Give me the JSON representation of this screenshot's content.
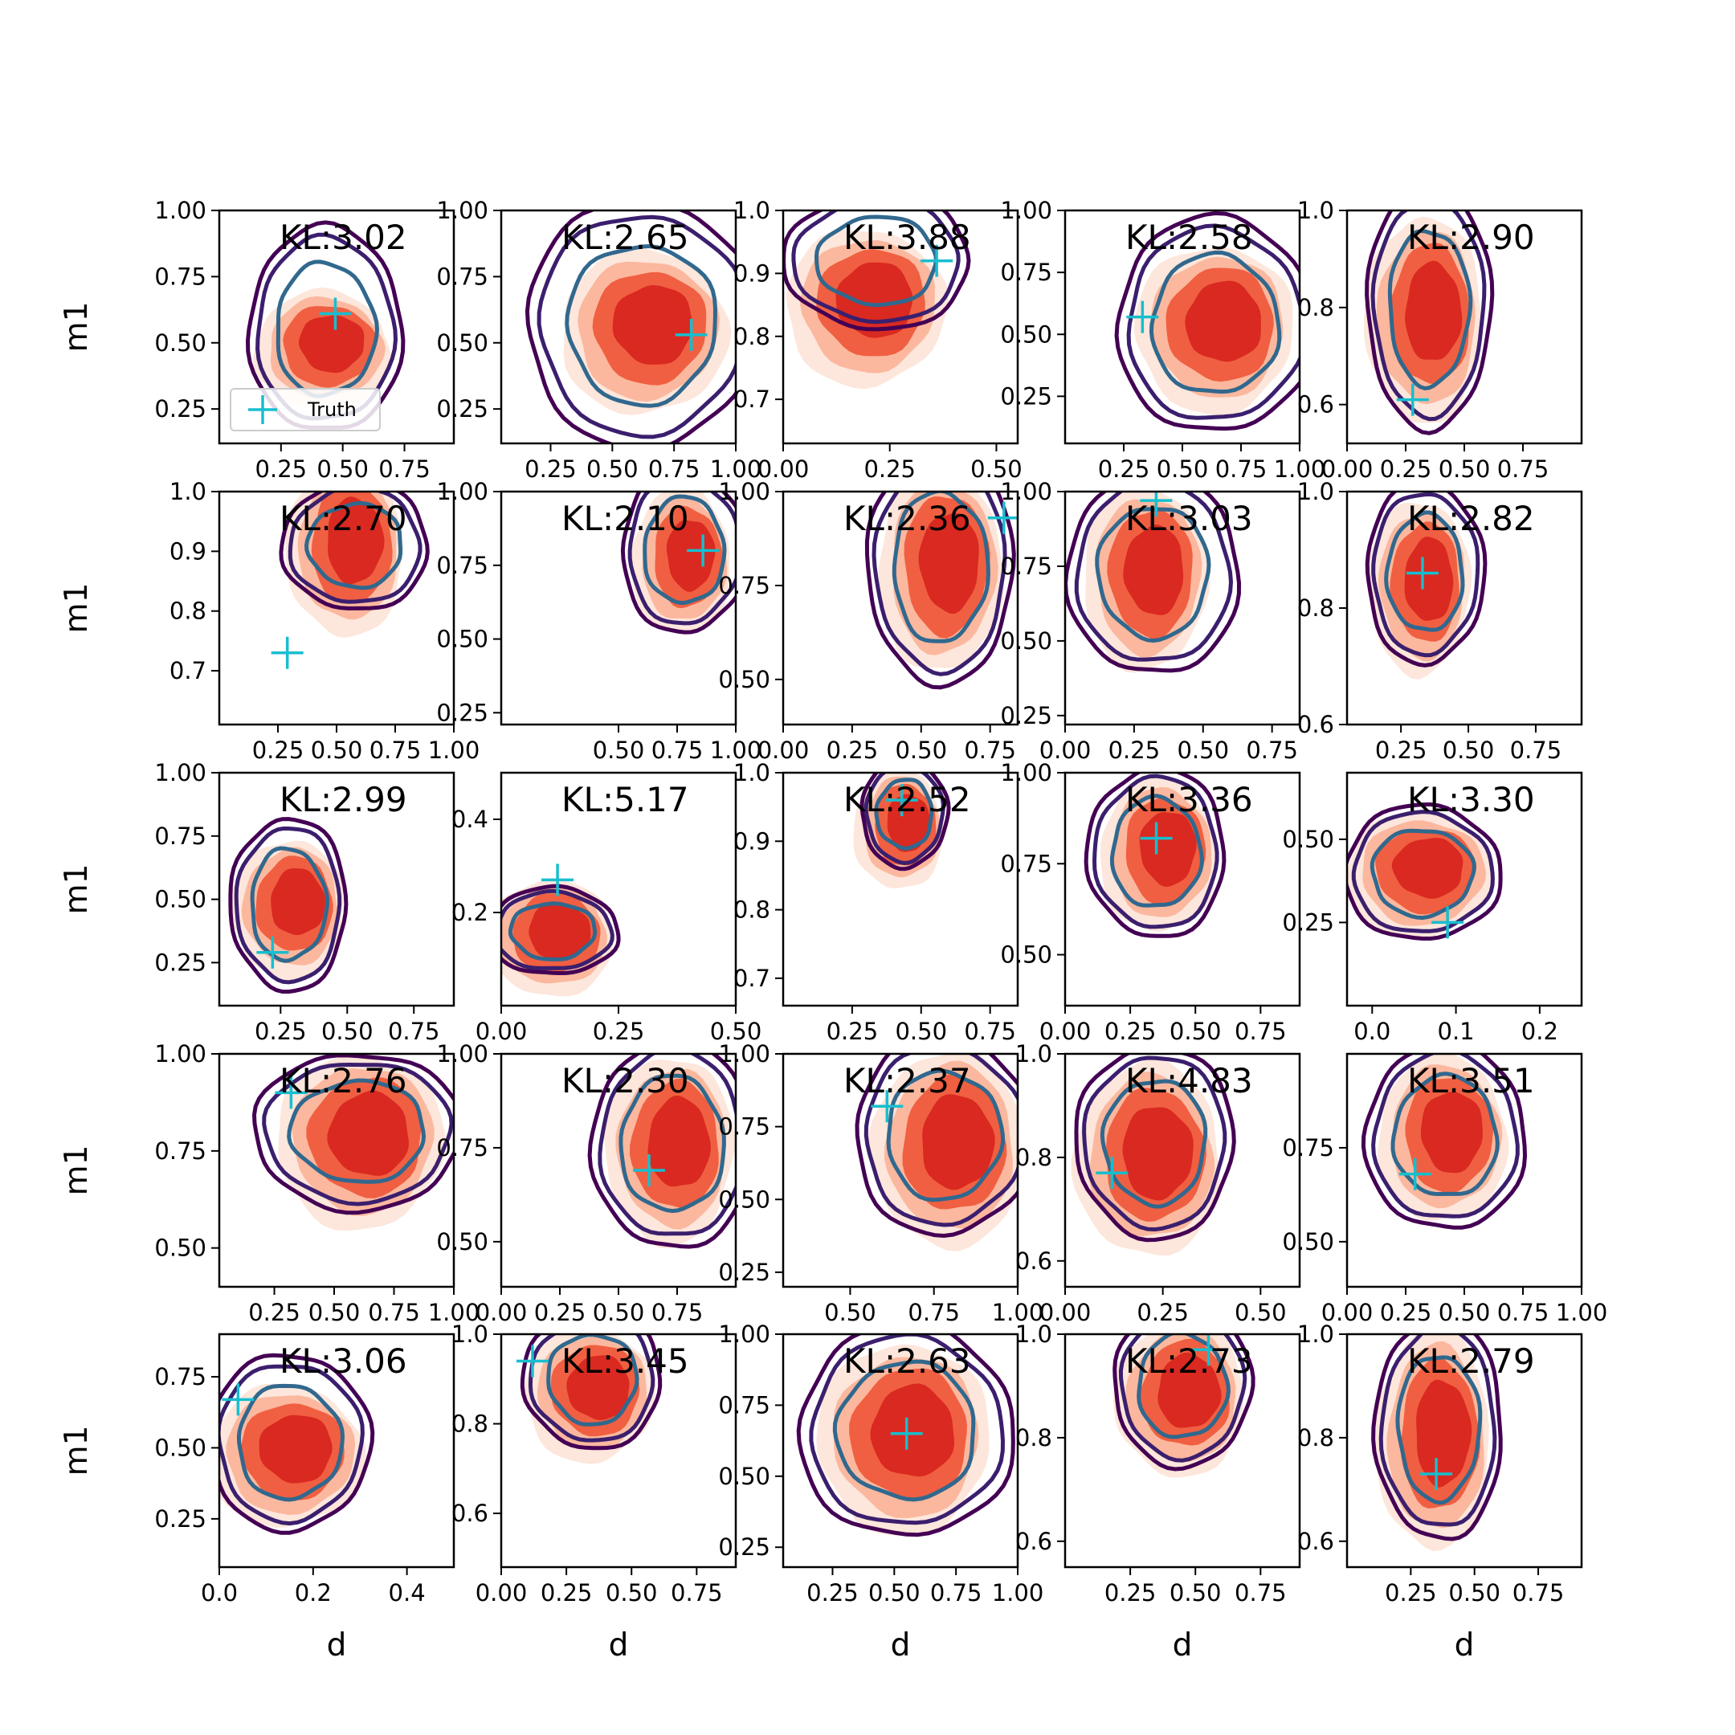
{
  "legend": {
    "label": "Truth",
    "color": "#17becf"
  },
  "colors": {
    "posterior_fill": [
      "#fde0d2",
      "#fbb59b",
      "#ef5a3c",
      "#d7261f"
    ],
    "contour_outer": "#440154",
    "contour_mid": "#3b1f6e",
    "contour_inner": "#31688e",
    "truth": "#17becf"
  },
  "chart_data": [
    {
      "type": "scatter",
      "row": 0,
      "col": 0,
      "annotation": "KL:3.02",
      "xlabel": "",
      "ylabel": "m1",
      "xlim": [
        0.0,
        0.95
      ],
      "ylim": [
        0.12,
        1.0
      ],
      "xticks": [
        "0.25",
        "0.50",
        "0.75"
      ],
      "yticks": [
        "0.25",
        "0.50",
        "0.75",
        "1.00"
      ],
      "truth": [
        0.47,
        0.61
      ],
      "density_center": [
        0.43,
        0.48
      ],
      "density_spread": [
        0.22,
        0.18
      ],
      "blue_contour": {
        "center": [
          0.43,
          0.55
        ],
        "spread": [
          0.2,
          0.25
        ]
      },
      "legend": true
    },
    {
      "type": "scatter",
      "row": 0,
      "col": 1,
      "annotation": "KL:2.65",
      "xlabel": "",
      "ylabel": "",
      "xlim": [
        0.05,
        1.0
      ],
      "ylim": [
        0.12,
        1.0
      ],
      "xticks": [
        "0.25",
        "0.50",
        "0.75",
        "1.00"
      ],
      "yticks": [
        "0.25",
        "0.50",
        "0.75",
        "1.00"
      ],
      "truth": [
        0.82,
        0.53
      ],
      "density_center": [
        0.64,
        0.55
      ],
      "density_spread": [
        0.27,
        0.25
      ],
      "blue_contour": {
        "center": [
          0.62,
          0.57
        ],
        "spread": [
          0.3,
          0.3
        ]
      }
    },
    {
      "type": "scatter",
      "row": 0,
      "col": 2,
      "annotation": "KL:3.88",
      "xlabel": "",
      "ylabel": "",
      "xlim": [
        0.0,
        0.55
      ],
      "ylim": [
        0.63,
        1.0
      ],
      "xticks": [
        "0.00",
        "0.25",
        "0.50"
      ],
      "yticks": [
        "0.7",
        "0.8",
        "0.9",
        "1.0"
      ],
      "truth": [
        0.36,
        0.92
      ],
      "density_center": [
        0.2,
        0.85
      ],
      "density_spread": [
        0.15,
        0.1
      ],
      "blue_contour": {
        "center": [
          0.22,
          0.92
        ],
        "spread": [
          0.14,
          0.07
        ]
      }
    },
    {
      "type": "scatter",
      "row": 0,
      "col": 3,
      "annotation": "KL:2.58",
      "xlabel": "",
      "ylabel": "",
      "xlim": [
        0.0,
        1.0
      ],
      "ylim": [
        0.06,
        1.0
      ],
      "xticks": [
        "0.25",
        "0.50",
        "0.75",
        "1.00"
      ],
      "yticks": [
        "0.25",
        "0.50",
        "0.75",
        "1.00"
      ],
      "truth": [
        0.33,
        0.57
      ],
      "density_center": [
        0.65,
        0.53
      ],
      "density_spread": [
        0.27,
        0.27
      ],
      "blue_contour": {
        "center": [
          0.64,
          0.54
        ],
        "spread": [
          0.27,
          0.28
        ]
      }
    },
    {
      "type": "scatter",
      "row": 0,
      "col": 4,
      "annotation": "KL:2.90",
      "xlabel": "",
      "ylabel": "",
      "xlim": [
        0.0,
        1.0
      ],
      "ylim": [
        0.52,
        1.0
      ],
      "xticks": [
        "0.00",
        "0.25",
        "0.50",
        "0.75"
      ],
      "yticks": [
        "0.6",
        "0.8",
        "1.0"
      ],
      "truth": [
        0.28,
        0.61
      ],
      "density_center": [
        0.34,
        0.78
      ],
      "density_spread": [
        0.2,
        0.17
      ],
      "blue_contour": {
        "center": [
          0.35,
          0.8
        ],
        "spread": [
          0.17,
          0.16
        ]
      }
    },
    {
      "type": "scatter",
      "row": 1,
      "col": 0,
      "annotation": "KL:2.70",
      "xlabel": "",
      "ylabel": "m1",
      "xlim": [
        0.0,
        1.0
      ],
      "ylim": [
        0.61,
        1.0
      ],
      "xticks": [
        "0.25",
        "0.50",
        "0.75",
        "1.00"
      ],
      "yticks": [
        "0.7",
        "0.8",
        "0.9",
        "1.0"
      ],
      "truth": [
        0.29,
        0.73
      ],
      "density_center": [
        0.55,
        0.91
      ],
      "density_spread": [
        0.2,
        0.12
      ],
      "blue_contour": {
        "center": [
          0.58,
          0.91
        ],
        "spread": [
          0.2,
          0.07
        ]
      }
    },
    {
      "type": "scatter",
      "row": 1,
      "col": 1,
      "annotation": "KL:2.10",
      "xlabel": "",
      "ylabel": "",
      "xlim": [
        0.0,
        1.0
      ],
      "ylim": [
        0.21,
        1.0
      ],
      "xticks": [
        "0.50",
        "0.75",
        "1.00"
      ],
      "yticks": [
        "0.25",
        "0.50",
        "0.75",
        "1.00"
      ],
      "truth": [
        0.86,
        0.8
      ],
      "density_center": [
        0.78,
        0.77
      ],
      "density_spread": [
        0.17,
        0.2
      ],
      "blue_contour": {
        "center": [
          0.78,
          0.8
        ],
        "spread": [
          0.17,
          0.18
        ]
      }
    },
    {
      "type": "scatter",
      "row": 1,
      "col": 2,
      "annotation": "KL:2.36",
      "xlabel": "",
      "ylabel": "",
      "xlim": [
        0.0,
        0.85
      ],
      "ylim": [
        0.38,
        1.0
      ],
      "xticks": [
        "0.00",
        "0.25",
        "0.50",
        "0.75"
      ],
      "yticks": [
        "0.50",
        "0.75",
        "1.00"
      ],
      "truth": [
        0.8,
        0.93
      ],
      "density_center": [
        0.58,
        0.8
      ],
      "density_spread": [
        0.18,
        0.22
      ],
      "blue_contour": {
        "center": [
          0.57,
          0.8
        ],
        "spread": [
          0.17,
          0.2
        ]
      }
    },
    {
      "type": "scatter",
      "row": 1,
      "col": 3,
      "annotation": "KL:3.03",
      "xlabel": "",
      "ylabel": "",
      "xlim": [
        0.0,
        0.85
      ],
      "ylim": [
        0.22,
        1.0
      ],
      "xticks": [
        "0.00",
        "0.25",
        "0.50",
        "0.75"
      ],
      "yticks": [
        "0.25",
        "0.50",
        "0.75",
        "1.00"
      ],
      "truth": [
        0.33,
        0.97
      ],
      "density_center": [
        0.3,
        0.72
      ],
      "density_spread": [
        0.18,
        0.25
      ],
      "blue_contour": {
        "center": [
          0.32,
          0.73
        ],
        "spread": [
          0.2,
          0.22
        ]
      }
    },
    {
      "type": "scatter",
      "row": 1,
      "col": 4,
      "annotation": "KL:2.82",
      "xlabel": "",
      "ylabel": "",
      "xlim": [
        0.05,
        0.92
      ],
      "ylim": [
        0.6,
        1.0
      ],
      "xticks": [
        "0.25",
        "0.50",
        "0.75"
      ],
      "yticks": [
        "0.6",
        "0.8",
        "1.0"
      ],
      "truth": [
        0.33,
        0.86
      ],
      "density_center": [
        0.33,
        0.84
      ],
      "density_spread": [
        0.15,
        0.12
      ],
      "blue_contour": {
        "center": [
          0.34,
          0.86
        ],
        "spread": [
          0.14,
          0.1
        ]
      }
    },
    {
      "type": "scatter",
      "row": 2,
      "col": 0,
      "annotation": "KL:2.99",
      "xlabel": "",
      "ylabel": "m1",
      "xlim": [
        0.02,
        0.9
      ],
      "ylim": [
        0.08,
        1.0
      ],
      "xticks": [
        "0.25",
        "0.50",
        "0.75"
      ],
      "yticks": [
        "0.25",
        "0.50",
        "0.75",
        "1.00"
      ],
      "truth": [
        0.22,
        0.29
      ],
      "density_center": [
        0.29,
        0.47
      ],
      "density_spread": [
        0.17,
        0.22
      ],
      "blue_contour": {
        "center": [
          0.28,
          0.48
        ],
        "spread": [
          0.14,
          0.22
        ]
      }
    },
    {
      "type": "scatter",
      "row": 2,
      "col": 1,
      "annotation": "KL:5.17",
      "xlabel": "",
      "ylabel": "",
      "xlim": [
        0.0,
        0.5
      ],
      "ylim": [
        0.0,
        0.5
      ],
      "xticks": [
        "0.00",
        "0.25",
        "0.50"
      ],
      "yticks": [
        "0.2",
        "0.4"
      ],
      "truth": [
        0.12,
        0.27
      ],
      "density_center": [
        0.11,
        0.15
      ],
      "density_spread": [
        0.11,
        0.1
      ],
      "blue_contour": {
        "center": [
          0.11,
          0.16
        ],
        "spread": [
          0.09,
          0.06
        ]
      }
    },
    {
      "type": "scatter",
      "row": 2,
      "col": 2,
      "annotation": "KL:2.52",
      "xlabel": "",
      "ylabel": "",
      "xlim": [
        0.0,
        0.85
      ],
      "ylim": [
        0.66,
        1.0
      ],
      "xticks": [
        "0.25",
        "0.50",
        "0.75"
      ],
      "yticks": [
        "0.7",
        "0.8",
        "0.9",
        "1.0"
      ],
      "truth": [
        0.43,
        0.96
      ],
      "density_center": [
        0.43,
        0.92
      ],
      "density_spread": [
        0.13,
        0.07
      ],
      "blue_contour": {
        "center": [
          0.44,
          0.94
        ],
        "spread": [
          0.1,
          0.05
        ]
      }
    },
    {
      "type": "scatter",
      "row": 2,
      "col": 3,
      "annotation": "KL:3.36",
      "xlabel": "",
      "ylabel": "",
      "xlim": [
        0.0,
        0.9
      ],
      "ylim": [
        0.36,
        1.0
      ],
      "xticks": [
        "0.00",
        "0.25",
        "0.50",
        "0.75"
      ],
      "yticks": [
        "0.50",
        "0.75",
        "1.00"
      ],
      "truth": [
        0.35,
        0.82
      ],
      "density_center": [
        0.37,
        0.78
      ],
      "density_spread": [
        0.18,
        0.17
      ],
      "blue_contour": {
        "center": [
          0.35,
          0.78
        ],
        "spread": [
          0.17,
          0.15
        ]
      }
    },
    {
      "type": "scatter",
      "row": 2,
      "col": 4,
      "annotation": "KL:3.30",
      "xlabel": "",
      "ylabel": "",
      "xlim": [
        -0.03,
        0.25
      ],
      "ylim": [
        0.0,
        0.7
      ],
      "xticks": [
        "0.0",
        "0.1",
        "0.2"
      ],
      "yticks": [
        "0.25",
        "0.50"
      ],
      "truth": [
        0.09,
        0.25
      ],
      "density_center": [
        0.06,
        0.4
      ],
      "density_spread": [
        0.07,
        0.15
      ],
      "blue_contour": {
        "center": [
          0.06,
          0.4
        ],
        "spread": [
          0.06,
          0.13
        ]
      }
    },
    {
      "type": "scatter",
      "row": 3,
      "col": 0,
      "annotation": "KL:2.76",
      "xlabel": "",
      "ylabel": "m1",
      "xlim": [
        0.02,
        1.0
      ],
      "ylim": [
        0.4,
        1.0
      ],
      "xticks": [
        "0.25",
        "0.50",
        "0.75",
        "1.00"
      ],
      "yticks": [
        "0.50",
        "0.75",
        "1.00"
      ],
      "truth": [
        0.32,
        0.9
      ],
      "density_center": [
        0.62,
        0.78
      ],
      "density_spread": [
        0.28,
        0.18
      ],
      "blue_contour": {
        "center": [
          0.6,
          0.8
        ],
        "spread": [
          0.28,
          0.13
        ]
      }
    },
    {
      "type": "scatter",
      "row": 3,
      "col": 1,
      "annotation": "KL:2.30",
      "xlabel": "",
      "ylabel": "",
      "xlim": [
        0.0,
        1.0
      ],
      "ylim": [
        0.38,
        1.0
      ],
      "xticks": [
        "0.00",
        "0.25",
        "0.50",
        "0.75"
      ],
      "yticks": [
        "0.50",
        "0.75",
        "1.00"
      ],
      "truth": [
        0.63,
        0.69
      ],
      "density_center": [
        0.73,
        0.75
      ],
      "density_spread": [
        0.22,
        0.2
      ],
      "blue_contour": {
        "center": [
          0.73,
          0.76
        ],
        "spread": [
          0.22,
          0.18
        ]
      }
    },
    {
      "type": "scatter",
      "row": 3,
      "col": 2,
      "annotation": "KL:2.37",
      "xlabel": "",
      "ylabel": "",
      "xlim": [
        0.3,
        1.0
      ],
      "ylim": [
        0.2,
        1.0
      ],
      "xticks": [
        "0.50",
        "0.75",
        "1.00"
      ],
      "yticks": [
        "0.25",
        "0.50",
        "0.75",
        "1.00"
      ],
      "truth": [
        0.61,
        0.82
      ],
      "density_center": [
        0.8,
        0.68
      ],
      "density_spread": [
        0.18,
        0.27
      ],
      "blue_contour": {
        "center": [
          0.78,
          0.72
        ],
        "spread": [
          0.17,
          0.22
        ]
      }
    },
    {
      "type": "scatter",
      "row": 3,
      "col": 3,
      "annotation": "KL:4.83",
      "xlabel": "",
      "ylabel": "",
      "xlim": [
        0.0,
        0.6
      ],
      "ylim": [
        0.55,
        1.0
      ],
      "xticks": [
        "0.00",
        "0.25",
        "0.50"
      ],
      "yticks": [
        "0.6",
        "0.8",
        "1.0"
      ],
      "truth": [
        0.12,
        0.77
      ],
      "density_center": [
        0.22,
        0.8
      ],
      "density_spread": [
        0.15,
        0.15
      ],
      "blue_contour": {
        "center": [
          0.23,
          0.83
        ],
        "spread": [
          0.13,
          0.12
        ]
      }
    },
    {
      "type": "scatter",
      "row": 3,
      "col": 4,
      "annotation": "KL:3.51",
      "xlabel": "",
      "ylabel": "",
      "xlim": [
        0.0,
        1.0
      ],
      "ylim": [
        0.38,
        1.0
      ],
      "xticks": [
        "0.00",
        "0.25",
        "0.50",
        "0.75",
        "1.00"
      ],
      "yticks": [
        "0.50",
        "0.75"
      ],
      "truth": [
        0.29,
        0.68
      ],
      "density_center": [
        0.42,
        0.78
      ],
      "density_spread": [
        0.22,
        0.18
      ],
      "blue_contour": {
        "center": [
          0.42,
          0.78
        ],
        "spread": [
          0.22,
          0.16
        ]
      }
    },
    {
      "type": "scatter",
      "row": 4,
      "col": 0,
      "annotation": "KL:3.06",
      "xlabel": "d",
      "ylabel": "m1",
      "xlim": [
        0.0,
        0.5
      ],
      "ylim": [
        0.08,
        0.9
      ],
      "xticks": [
        "0.0",
        "0.2",
        "0.4"
      ],
      "yticks": [
        "0.25",
        "0.50",
        "0.75"
      ],
      "truth": [
        0.04,
        0.67
      ],
      "density_center": [
        0.15,
        0.48
      ],
      "density_spread": [
        0.13,
        0.2
      ],
      "blue_contour": {
        "center": [
          0.15,
          0.52
        ],
        "spread": [
          0.11,
          0.2
        ]
      }
    },
    {
      "type": "scatter",
      "row": 4,
      "col": 1,
      "annotation": "KL:3.45",
      "xlabel": "d",
      "ylabel": "",
      "xlim": [
        0.0,
        0.9
      ],
      "ylim": [
        0.48,
        1.0
      ],
      "xticks": [
        "0.00",
        "0.25",
        "0.50",
        "0.75"
      ],
      "yticks": [
        "0.6",
        "0.8",
        "1.0"
      ],
      "truth": [
        0.12,
        0.94
      ],
      "density_center": [
        0.35,
        0.87
      ],
      "density_spread": [
        0.2,
        0.12
      ],
      "blue_contour": {
        "center": [
          0.35,
          0.9
        ],
        "spread": [
          0.17,
          0.1
        ]
      }
    },
    {
      "type": "scatter",
      "row": 4,
      "col": 2,
      "annotation": "KL:2.63",
      "xlabel": "d",
      "ylabel": "",
      "xlim": [
        0.05,
        1.0
      ],
      "ylim": [
        0.18,
        1.0
      ],
      "xticks": [
        "0.25",
        "0.50",
        "0.75",
        "1.00"
      ],
      "yticks": [
        "0.25",
        "0.50",
        "0.75",
        "1.00"
      ],
      "truth": [
        0.55,
        0.65
      ],
      "density_center": [
        0.55,
        0.64
      ],
      "density_spread": [
        0.28,
        0.27
      ],
      "blue_contour": {
        "center": [
          0.55,
          0.66
        ],
        "spread": [
          0.28,
          0.24
        ]
      }
    },
    {
      "type": "scatter",
      "row": 4,
      "col": 3,
      "annotation": "KL:2.73",
      "xlabel": "d",
      "ylabel": "",
      "xlim": [
        0.0,
        0.9
      ],
      "ylim": [
        0.55,
        1.0
      ],
      "xticks": [
        "0.25",
        "0.50",
        "0.75"
      ],
      "yticks": [
        "0.6",
        "0.8",
        "1.0"
      ],
      "truth": [
        0.55,
        0.97
      ],
      "density_center": [
        0.45,
        0.88
      ],
      "density_spread": [
        0.2,
        0.12
      ],
      "blue_contour": {
        "center": [
          0.45,
          0.9
        ],
        "spread": [
          0.17,
          0.1
        ]
      }
    },
    {
      "type": "scatter",
      "row": 4,
      "col": 4,
      "annotation": "KL:2.79",
      "xlabel": "d",
      "ylabel": "",
      "xlim": [
        0.0,
        0.92
      ],
      "ylim": [
        0.55,
        1.0
      ],
      "xticks": [
        "0.25",
        "0.50",
        "0.75"
      ],
      "yticks": [
        "0.6",
        "0.8",
        "1.0"
      ],
      "truth": [
        0.35,
        0.73
      ],
      "density_center": [
        0.35,
        0.8
      ],
      "density_spread": [
        0.18,
        0.17
      ],
      "blue_contour": {
        "center": [
          0.36,
          0.82
        ],
        "spread": [
          0.16,
          0.14
        ]
      }
    }
  ]
}
